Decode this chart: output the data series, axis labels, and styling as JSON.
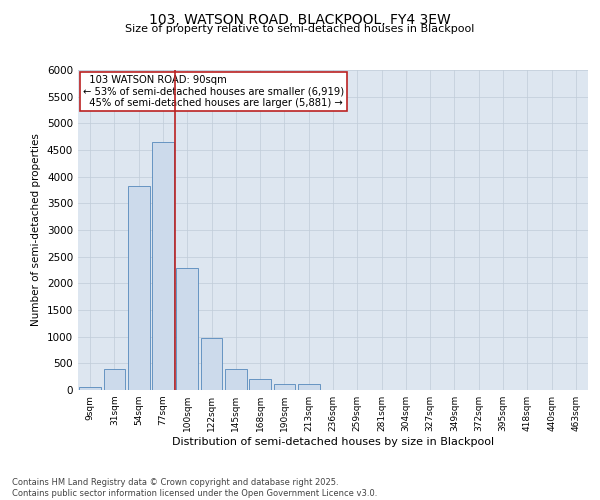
{
  "title1": "103, WATSON ROAD, BLACKPOOL, FY4 3EW",
  "title2": "Size of property relative to semi-detached houses in Blackpool",
  "xlabel": "Distribution of semi-detached houses by size in Blackpool",
  "ylabel": "Number of semi-detached properties",
  "categories": [
    "9sqm",
    "31sqm",
    "54sqm",
    "77sqm",
    "100sqm",
    "122sqm",
    "145sqm",
    "168sqm",
    "190sqm",
    "213sqm",
    "236sqm",
    "259sqm",
    "281sqm",
    "304sqm",
    "327sqm",
    "349sqm",
    "372sqm",
    "395sqm",
    "418sqm",
    "440sqm",
    "463sqm"
  ],
  "values": [
    50,
    400,
    3820,
    4650,
    2280,
    980,
    400,
    200,
    110,
    110,
    0,
    0,
    0,
    0,
    0,
    0,
    0,
    0,
    0,
    0,
    0
  ],
  "bar_color": "#ccdaeb",
  "bar_edge_color": "#5588bb",
  "vline_index": 3.5,
  "marker_label": "103 WATSON ROAD: 90sqm",
  "smaller_pct": "53% of semi-detached houses are smaller (6,919)",
  "larger_pct": "45% of semi-detached houses are larger (5,881)",
  "vline_color": "#bb2222",
  "grid_color": "#c0ccd8",
  "bg_color": "#dde6f0",
  "ylim": [
    0,
    6000
  ],
  "yticks": [
    0,
    500,
    1000,
    1500,
    2000,
    2500,
    3000,
    3500,
    4000,
    4500,
    5000,
    5500,
    6000
  ],
  "footnote": "Contains HM Land Registry data © Crown copyright and database right 2025.\nContains public sector information licensed under the Open Government Licence v3.0."
}
